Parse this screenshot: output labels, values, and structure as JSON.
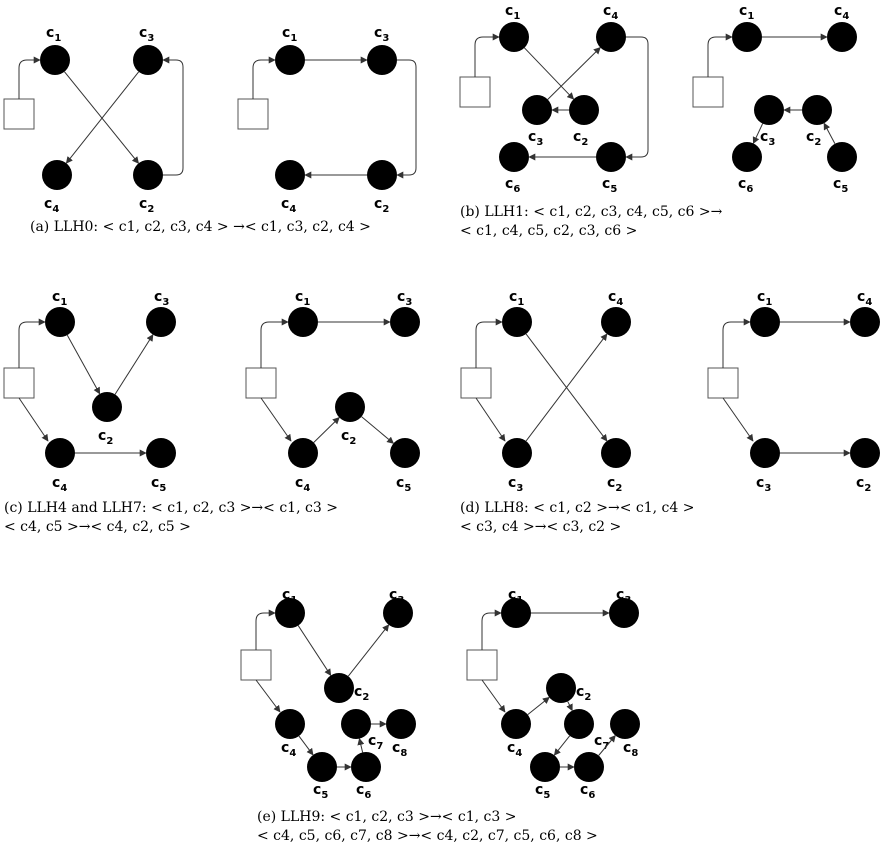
{
  "panels": [
    {
      "id": "a",
      "caption_lines": [
        "(a) LLH0: < c1, c2, c3, c4 > →< c1, c3, c2, c4 >"
      ],
      "before": {
        "nodes": [
          {
            "name": "c",
            "sub": "1"
          },
          {
            "name": "c",
            "sub": "3"
          },
          {
            "name": "c",
            "sub": "4"
          },
          {
            "name": "c",
            "sub": "2"
          }
        ]
      },
      "after": {
        "nodes": [
          {
            "name": "c",
            "sub": "1"
          },
          {
            "name": "c",
            "sub": "3"
          },
          {
            "name": "c",
            "sub": "4"
          },
          {
            "name": "c",
            "sub": "2"
          }
        ]
      }
    },
    {
      "id": "b",
      "caption_lines": [
        "(b) LLH1: < c1, c2, c3, c4, c5, c6 >→",
        "< c1, c4, c5, c2, c3, c6 >"
      ]
    },
    {
      "id": "c",
      "caption_lines": [
        "(c) LLH4 and LLH7: < c1, c2, c3 >→< c1, c3 >",
        "< c4, c5 >→< c4, c2, c5 >"
      ]
    },
    {
      "id": "d",
      "caption_lines": [
        "(d) LLH8: < c1, c2 >→< c1, c4 >",
        "< c3, c4 >→< c3, c2 >"
      ]
    },
    {
      "id": "e",
      "caption_lines": [
        "(e) LLH9: < c1, c2, c3 >→< c1, c3 >",
        "< c4, c5, c6, c7, c8 >→< c4, c2, c7, c5, c6, c8 >"
      ]
    }
  ]
}
